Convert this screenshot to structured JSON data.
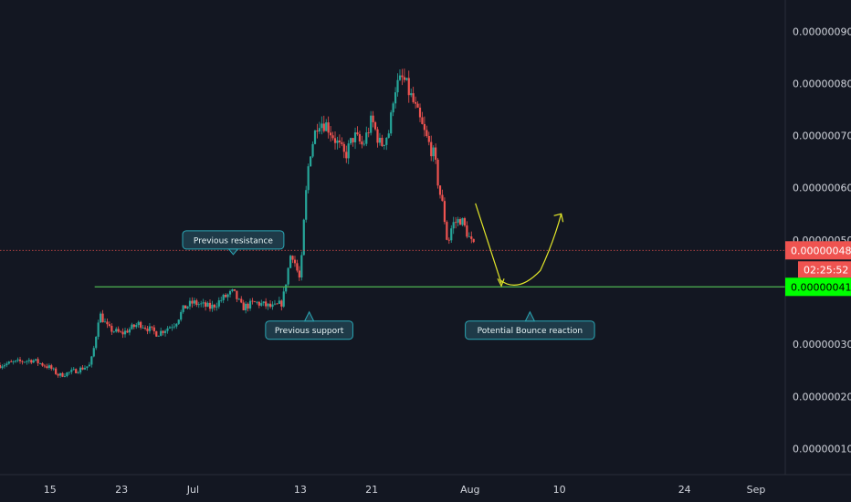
{
  "colors": {
    "background": "#131722",
    "axis_text": "#d1d4dc",
    "up_candle": "#26a69a",
    "down_candle": "#ef5350",
    "support_line": "#4caf50",
    "current_price_line": "#ef5350",
    "current_price_badge": "#ef5350",
    "support_badge": "#00ff00",
    "countdown_badge": "#ef5350",
    "annotation_bg": "#1e3a48",
    "annotation_border": "#2aa6b4",
    "arrow": "#e2e629"
  },
  "price_axis": {
    "ticks": [
      "0.00000090",
      "0.00000080",
      "0.00000070",
      "0.00000060",
      "0.00000050",
      "0.00000030",
      "0.00000020",
      "0.00000010"
    ],
    "tick_values": [
      9e-07,
      8e-07,
      7e-07,
      6e-07,
      5e-07,
      3e-07,
      2e-07,
      1e-07
    ]
  },
  "time_axis": {
    "labels": [
      "15",
      "23",
      "Jul",
      "13",
      "21",
      "Aug",
      "10",
      "24",
      "Sep"
    ],
    "label_days": [
      0,
      8,
      16,
      28,
      36,
      47,
      57,
      71,
      79
    ]
  },
  "badges": {
    "current_price": "0.00000048",
    "countdown": "02:25:52",
    "support_price": "0.00000041"
  },
  "annotations": {
    "previous_resistance": "Previous resistance",
    "previous_support": "Previous support",
    "bounce": "Potential Bounce reaction"
  },
  "chart_data": {
    "type": "candlestick",
    "x_unit": "days from Jun 15",
    "y_unit": "price",
    "ylim": [
      5e-08,
      9.6e-07
    ],
    "xlim": [
      -5.6,
      79
    ],
    "horizontal_lines": [
      {
        "name": "current price",
        "value": 4.8e-07,
        "style": "dotted",
        "color": "#ef5350"
      },
      {
        "name": "support",
        "value": 4.1e-07,
        "style": "solid",
        "color": "#4caf50"
      }
    ],
    "price_path": [
      [
        -5.6,
        2.6e-07
      ],
      [
        -4,
        2.65e-07
      ],
      [
        -2,
        2.7e-07
      ],
      [
        0,
        2.55e-07
      ],
      [
        1,
        2.4e-07
      ],
      [
        3,
        2.5e-07
      ],
      [
        4.5,
        2.6e-07
      ],
      [
        5,
        3e-07
      ],
      [
        5.5,
        3.6e-07
      ],
      [
        6.5,
        3.3e-07
      ],
      [
        8,
        3.2e-07
      ],
      [
        10,
        3.4e-07
      ],
      [
        12,
        3.2e-07
      ],
      [
        14,
        3.4e-07
      ],
      [
        15,
        3.7e-07
      ],
      [
        16,
        3.8e-07
      ],
      [
        18,
        3.7e-07
      ],
      [
        19.5,
        3.9e-07
      ],
      [
        20.5,
        4e-07
      ],
      [
        21.5,
        3.7e-07
      ],
      [
        23,
        3.8e-07
      ],
      [
        25,
        3.7e-07
      ],
      [
        26,
        3.8e-07
      ],
      [
        26.5,
        4.3e-07
      ],
      [
        27,
        4.8e-07
      ],
      [
        27.5,
        4.5e-07
      ],
      [
        28,
        4.2e-07
      ],
      [
        28.5,
        5.6e-07
      ],
      [
        29,
        6.6e-07
      ],
      [
        30,
        7.3e-07
      ],
      [
        31,
        7.2e-07
      ],
      [
        32,
        6.9e-07
      ],
      [
        33,
        6.6e-07
      ],
      [
        34,
        7e-07
      ],
      [
        35,
        6.8e-07
      ],
      [
        36,
        7.3e-07
      ],
      [
        37,
        6.8e-07
      ],
      [
        38,
        7.1e-07
      ],
      [
        38.5,
        7.9e-07
      ],
      [
        39.5,
        8.1e-07
      ],
      [
        40.5,
        7.7e-07
      ],
      [
        42,
        7e-07
      ],
      [
        43,
        6.6e-07
      ],
      [
        43.5,
        6e-07
      ],
      [
        44,
        5.6e-07
      ],
      [
        44.5,
        4.9e-07
      ],
      [
        45,
        5.3e-07
      ],
      [
        46,
        5.4e-07
      ],
      [
        47,
        5e-07
      ],
      [
        47.6,
        4.8e-07
      ]
    ],
    "projection": {
      "down_leg": [
        [
          47.6,
          5.7e-07
        ],
        [
          50.5,
          4.1e-07
        ]
      ],
      "up_leg_end": [
        57.2,
        5.5e-07
      ],
      "bottom": [
        51.6,
        4.1e-07
      ]
    },
    "annotations": [
      {
        "text": "Previous resistance",
        "x": 20.5,
        "y": 4.3e-07,
        "pointer": "down"
      },
      {
        "text": "Previous support",
        "x": 29,
        "y": 3.9e-07,
        "pointer": "up"
      },
      {
        "text": "Potential Bounce reaction",
        "x": 53.7,
        "y": 3.9e-07,
        "pointer": "up"
      }
    ]
  }
}
